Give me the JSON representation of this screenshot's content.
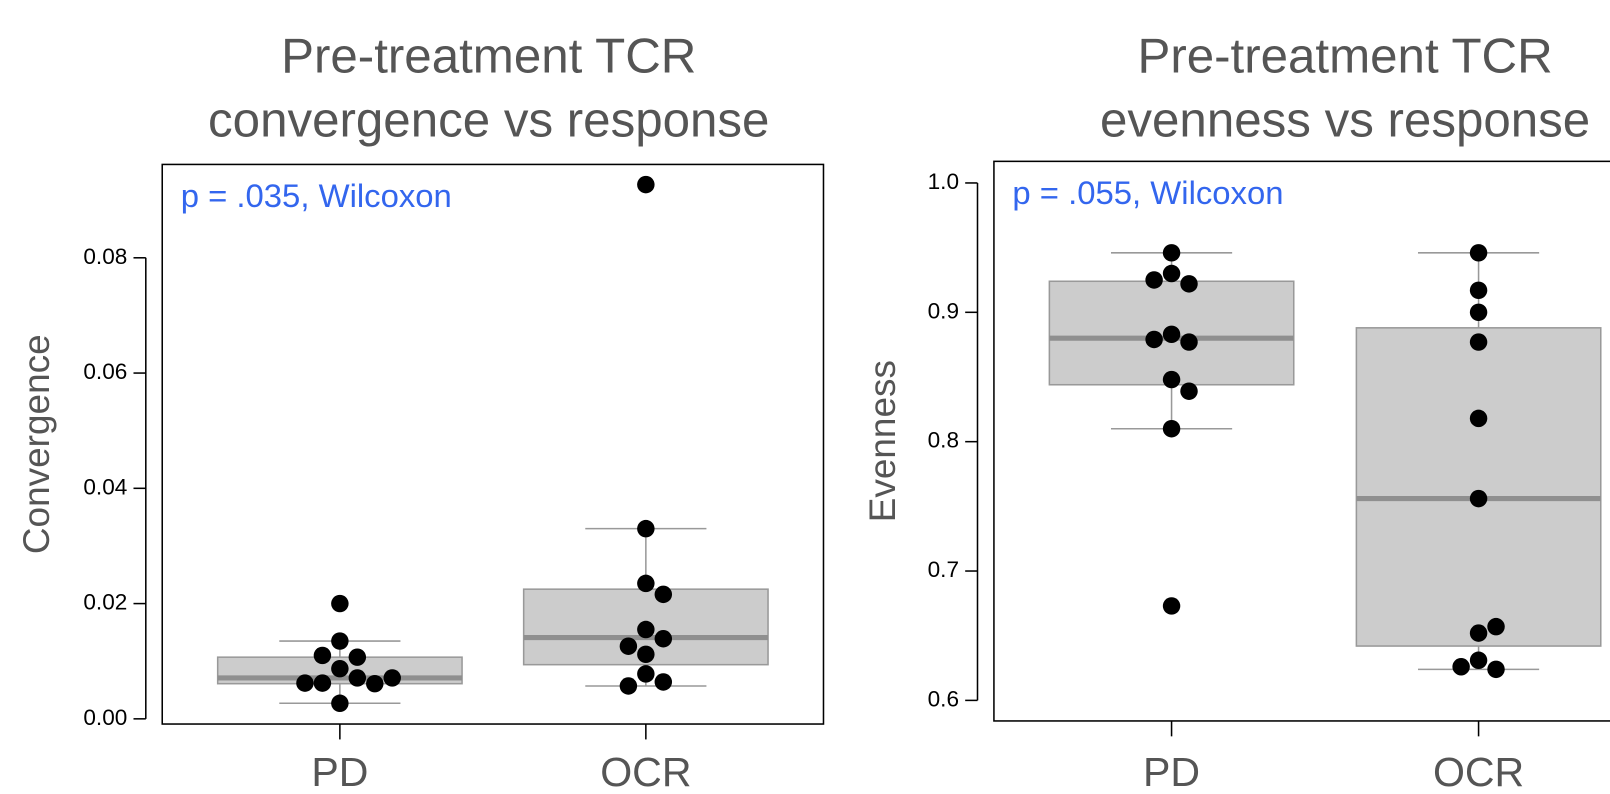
{
  "chart_data": [
    {
      "type": "box",
      "title": [
        "Pre-treatment TCR",
        "convergence vs response"
      ],
      "ylabel": "Convergence",
      "annotation": "p = .035, Wilcoxon",
      "categories": [
        "PD",
        "OCR"
      ],
      "boxes": [
        {
          "whislo": 0.0027,
          "q1": 0.0061,
          "med": 0.0071,
          "q3": 0.0107,
          "whishi": 0.0135
        },
        {
          "whislo": 0.0057,
          "q1": 0.0094,
          "med": 0.0141,
          "q3": 0.0225,
          "whishi": 0.033
        }
      ],
      "points": [
        [
          0.02,
          0.0135,
          0.0107,
          0.011,
          0.0087,
          0.0071,
          0.0062,
          0.0061,
          0.0062,
          0.0071,
          0.0027
        ],
        [
          0.0927,
          0.033,
          0.0235,
          0.0216,
          0.0155,
          0.0139,
          0.0126,
          0.0112,
          0.0078,
          0.0064,
          0.0057
        ]
      ],
      "ylim": [
        -0.0009,
        0.0962
      ],
      "yticks": [
        {
          "value": 0,
          "label": "0.00"
        },
        0.02,
        0.04,
        0.06,
        0.08
      ],
      "box_color": "#cccccc",
      "median_color": "#8f8f8f",
      "point_color": "#000000",
      "annotation_color": "#3366ee"
    },
    {
      "type": "box",
      "title": [
        "Pre-treatment TCR",
        "evenness vs response"
      ],
      "ylabel": "Evenness",
      "annotation": "p = .055, Wilcoxon",
      "categories": [
        "PD",
        "OCR"
      ],
      "boxes": [
        {
          "whislo": 0.81,
          "q1": 0.844,
          "med": 0.88,
          "q3": 0.924,
          "whishi": 0.946
        },
        {
          "whislo": 0.624,
          "q1": 0.642,
          "med": 0.756,
          "q3": 0.888,
          "whishi": 0.946
        }
      ],
      "points": [
        [
          0.946,
          0.93,
          0.922,
          0.925,
          0.883,
          0.877,
          0.879,
          0.848,
          0.839,
          0.81,
          0.673
        ],
        [
          0.946,
          0.917,
          0.9,
          0.877,
          0.818,
          0.756,
          0.652,
          0.657,
          0.631,
          0.624,
          0.626
        ]
      ],
      "ylim": [
        0.5841,
        1.0167
      ],
      "yticks": [
        0.6,
        0.7,
        0.8,
        0.9,
        {
          "value": 1,
          "label": "1.0"
        }
      ],
      "box_color": "#cccccc",
      "median_color": "#8f8f8f",
      "point_color": "#000000",
      "annotation_color": "#3366ee"
    }
  ]
}
